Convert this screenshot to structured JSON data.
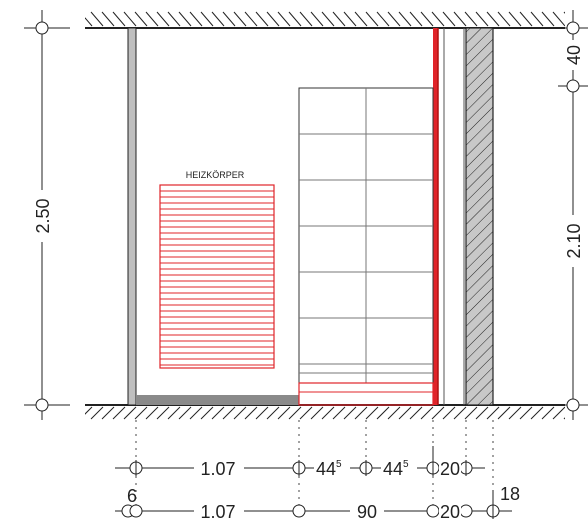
{
  "labels": {
    "radiator": "HEIZKÖRPER"
  },
  "dimensions": {
    "left_height": "2.50",
    "right_upper": "40",
    "right_lower": "2.10",
    "row1": {
      "a": "1.07",
      "b_main": "44",
      "b_sup": "5",
      "c_main": "44",
      "c_sup": "5",
      "d": "20"
    },
    "row2": {
      "a": "1.07",
      "b": "90",
      "c": "20",
      "small_left": "6",
      "small_right": "18"
    }
  },
  "colors": {
    "line": "#222222",
    "red": "#e0242a",
    "dark_red": "#b01010",
    "wall_gray": "#bfbfbf",
    "floor_gray": "#8a8a8a"
  }
}
